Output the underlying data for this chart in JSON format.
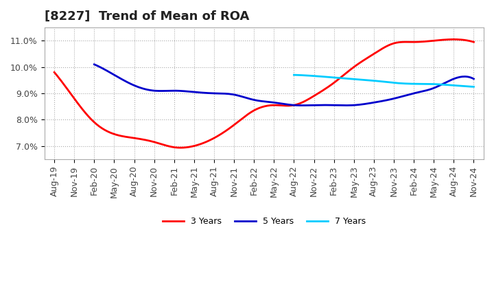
{
  "title": "[8227]  Trend of Mean of ROA",
  "x_labels": [
    "Aug-19",
    "Nov-19",
    "Feb-20",
    "May-20",
    "Aug-20",
    "Nov-20",
    "Feb-21",
    "May-21",
    "Aug-21",
    "Nov-21",
    "Feb-22",
    "May-22",
    "Aug-22",
    "Nov-22",
    "Feb-23",
    "May-23",
    "Aug-23",
    "Nov-23",
    "Feb-24",
    "May-24",
    "Aug-24",
    "Nov-24"
  ],
  "ylim": [
    0.065,
    0.115
  ],
  "yticks": [
    0.07,
    0.08,
    0.09,
    0.1,
    0.11
  ],
  "ytick_labels": [
    "7.0%",
    "8.0%",
    "9.0%",
    "10.0%",
    "11.0%"
  ],
  "series": {
    "3 Years": {
      "color": "#ff0000",
      "data": [
        0.098,
        0.088,
        0.079,
        0.0745,
        0.073,
        0.0715,
        0.0695,
        0.07,
        0.073,
        0.078,
        0.0835,
        0.0855,
        0.0855,
        0.089,
        0.094,
        0.1,
        0.105,
        0.109,
        0.1095,
        0.11,
        0.1105,
        0.1095
      ]
    },
    "5 Years": {
      "color": "#0000cc",
      "data": [
        null,
        null,
        0.101,
        0.097,
        0.093,
        0.091,
        0.091,
        0.0905,
        0.09,
        0.0895,
        0.0875,
        0.0865,
        0.0855,
        0.0855,
        0.0855,
        0.0855,
        0.0865,
        0.088,
        0.09,
        0.092,
        0.0955,
        0.0955
      ]
    },
    "7 Years": {
      "color": "#00ccff",
      "data": [
        null,
        null,
        null,
        null,
        null,
        null,
        null,
        null,
        null,
        null,
        null,
        null,
        0.097,
        0.0966,
        0.096,
        0.0954,
        0.0948,
        0.094,
        0.0936,
        0.0935,
        0.093,
        0.0925
      ]
    },
    "10 Years": {
      "color": "#006600",
      "data": [
        null,
        null,
        null,
        null,
        null,
        null,
        null,
        null,
        null,
        null,
        null,
        null,
        null,
        null,
        null,
        null,
        null,
        null,
        null,
        null,
        null,
        null
      ]
    }
  },
  "background_color": "#ffffff",
  "plot_bg_color": "#ffffff",
  "grid_color": "#aaaaaa",
  "title_fontsize": 13,
  "tick_fontsize": 9,
  "line_width": 2.0,
  "smooth_points": 300
}
